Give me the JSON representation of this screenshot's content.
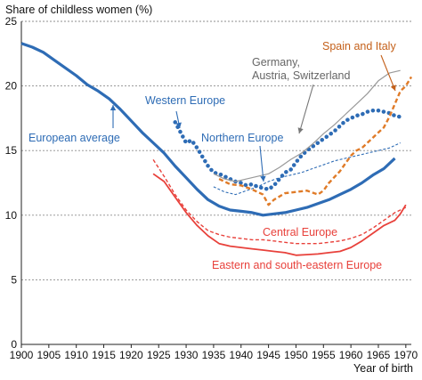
{
  "chart_data": {
    "type": "line",
    "ylabel": "Share of childless women (%)",
    "xlabel": "Year of birth",
    "xlim": [
      1900,
      1971
    ],
    "ylim": [
      0,
      25
    ],
    "xticks": [
      1900,
      1905,
      1910,
      1915,
      1920,
      1925,
      1930,
      1935,
      1940,
      1945,
      1950,
      1955,
      1960,
      1965,
      1970
    ],
    "yticks": [
      0,
      5,
      10,
      15,
      20,
      25
    ],
    "grid": "horizontal dotted",
    "series": [
      {
        "name": "Eastern and south-eastern Europe",
        "color": "#e8413b",
        "style": "solid",
        "x": [
          1924,
          1926,
          1928,
          1930,
          1932,
          1934,
          1936,
          1938,
          1940,
          1942,
          1944,
          1946,
          1948,
          1950,
          1952,
          1954,
          1956,
          1958,
          1960,
          1962,
          1964,
          1966,
          1968,
          1969,
          1970
        ],
        "y": [
          13.2,
          12.6,
          11.4,
          10.2,
          9.2,
          8.4,
          7.8,
          7.6,
          7.5,
          7.4,
          7.3,
          7.2,
          7.1,
          6.9,
          6.95,
          7.0,
          7.1,
          7.2,
          7.5,
          8.0,
          8.6,
          9.2,
          9.6,
          10.1,
          10.8
        ]
      },
      {
        "name": "Central Europe",
        "color": "#e8413b",
        "style": "dashed",
        "x": [
          1924,
          1926,
          1928,
          1930,
          1932,
          1934,
          1936,
          1938,
          1940,
          1942,
          1944,
          1946,
          1948,
          1950,
          1952,
          1954,
          1956,
          1958,
          1960,
          1962,
          1964,
          1966,
          1968,
          1970
        ],
        "y": [
          14.3,
          13.0,
          11.6,
          10.4,
          9.5,
          8.8,
          8.5,
          8.3,
          8.2,
          8.1,
          8.1,
          8.0,
          7.9,
          7.8,
          7.8,
          7.8,
          7.9,
          8.0,
          8.2,
          8.5,
          9.0,
          9.6,
          10.2,
          10.6
        ]
      },
      {
        "name": "European average",
        "color": "#2e6cb5",
        "style": "solid-thick",
        "x": [
          1900,
          1902,
          1904,
          1906,
          1908,
          1910,
          1912,
          1914,
          1916,
          1918,
          1920,
          1922,
          1924,
          1926,
          1928,
          1930,
          1932,
          1934,
          1936,
          1938,
          1940,
          1942,
          1944,
          1946,
          1948,
          1950,
          1952,
          1954,
          1956,
          1958,
          1960,
          1962,
          1964,
          1966,
          1968
        ],
        "y": [
          23.3,
          23.0,
          22.6,
          22.0,
          21.4,
          20.8,
          20.1,
          19.6,
          19.0,
          18.2,
          17.3,
          16.4,
          15.6,
          14.8,
          13.8,
          12.9,
          12.0,
          11.2,
          10.7,
          10.4,
          10.3,
          10.2,
          10.0,
          10.1,
          10.2,
          10.4,
          10.6,
          10.9,
          11.2,
          11.6,
          12.0,
          12.5,
          13.1,
          13.6,
          14.4
        ]
      },
      {
        "name": "Western Europe",
        "color": "#2e6cb5",
        "style": "dotted-thick",
        "x": [
          1928,
          1929,
          1930,
          1931,
          1932,
          1933,
          1934,
          1935,
          1936,
          1937,
          1938,
          1939,
          1940,
          1941,
          1942,
          1943,
          1944,
          1945,
          1946,
          1947,
          1948,
          1949,
          1950,
          1951,
          1952,
          1953,
          1954,
          1955,
          1956,
          1957,
          1958,
          1959,
          1960,
          1961,
          1962,
          1963,
          1964,
          1965,
          1966,
          1967,
          1968,
          1969
        ],
        "y": [
          17.2,
          16.4,
          15.6,
          15.8,
          15.2,
          14.5,
          13.8,
          13.3,
          13.2,
          13.0,
          12.8,
          12.6,
          12.5,
          12.3,
          12.4,
          12.2,
          12.1,
          12.0,
          12.3,
          12.8,
          13.3,
          13.5,
          14.1,
          14.6,
          15.0,
          15.3,
          15.6,
          15.9,
          16.2,
          16.5,
          16.9,
          17.3,
          17.5,
          17.7,
          17.8,
          18.0,
          18.1,
          18.1,
          18.0,
          17.9,
          17.7,
          17.6
        ]
      },
      {
        "name": "Northern Europe",
        "color": "#2e6cb5",
        "style": "dashed-thin",
        "x": [
          1935,
          1937,
          1939,
          1941,
          1943,
          1945,
          1947,
          1949,
          1951,
          1953,
          1955,
          1957,
          1959,
          1961,
          1963,
          1965,
          1967,
          1969
        ],
        "y": [
          12.2,
          11.8,
          11.6,
          11.9,
          12.2,
          12.6,
          12.9,
          13.1,
          13.3,
          13.6,
          13.9,
          14.2,
          14.4,
          14.6,
          14.8,
          15.0,
          15.2,
          15.6
        ]
      },
      {
        "name": "Germany, Austria, Switzerland",
        "color": "#999999",
        "style": "solid-thin",
        "x": [
          1935,
          1937,
          1939,
          1941,
          1943,
          1945,
          1947,
          1949,
          1951,
          1953,
          1955,
          1957,
          1959,
          1961,
          1963,
          1965,
          1967,
          1969
        ],
        "y": [
          13.2,
          12.8,
          12.6,
          12.8,
          13.0,
          13.2,
          13.7,
          14.3,
          14.8,
          15.5,
          16.3,
          17.0,
          17.8,
          18.6,
          19.4,
          20.4,
          21.0,
          21.2
        ]
      },
      {
        "name": "Spain and Italy",
        "color": "#e07b28",
        "style": "dashed-thick",
        "x": [
          1936,
          1938,
          1940,
          1942,
          1944,
          1945,
          1946,
          1948,
          1950,
          1952,
          1954,
          1955,
          1956,
          1958,
          1960,
          1961,
          1962,
          1964,
          1966,
          1967,
          1968,
          1969,
          1970,
          1971
        ],
        "y": [
          12.8,
          12.4,
          12.3,
          12.0,
          11.6,
          10.8,
          11.2,
          11.7,
          11.8,
          11.9,
          11.6,
          11.9,
          12.5,
          13.4,
          14.6,
          15.0,
          15.2,
          16.0,
          16.8,
          17.6,
          18.6,
          19.6,
          20.0,
          20.7
        ]
      }
    ],
    "annotations": [
      {
        "text": "European average",
        "color": "#2e6cb5"
      },
      {
        "text": "Western Europe",
        "color": "#2e6cb5"
      },
      {
        "text": "Northern Europe",
        "color": "#2e6cb5"
      },
      {
        "text": "Germany,",
        "color": "#666666"
      },
      {
        "text": "Austria, Switzerland",
        "color": "#666666"
      },
      {
        "text": "Spain and Italy",
        "color": "#c4601a"
      },
      {
        "text": "Central Europe",
        "color": "#e8413b"
      },
      {
        "text": "Eastern and south-eastern Europe",
        "color": "#e8413b"
      }
    ]
  }
}
